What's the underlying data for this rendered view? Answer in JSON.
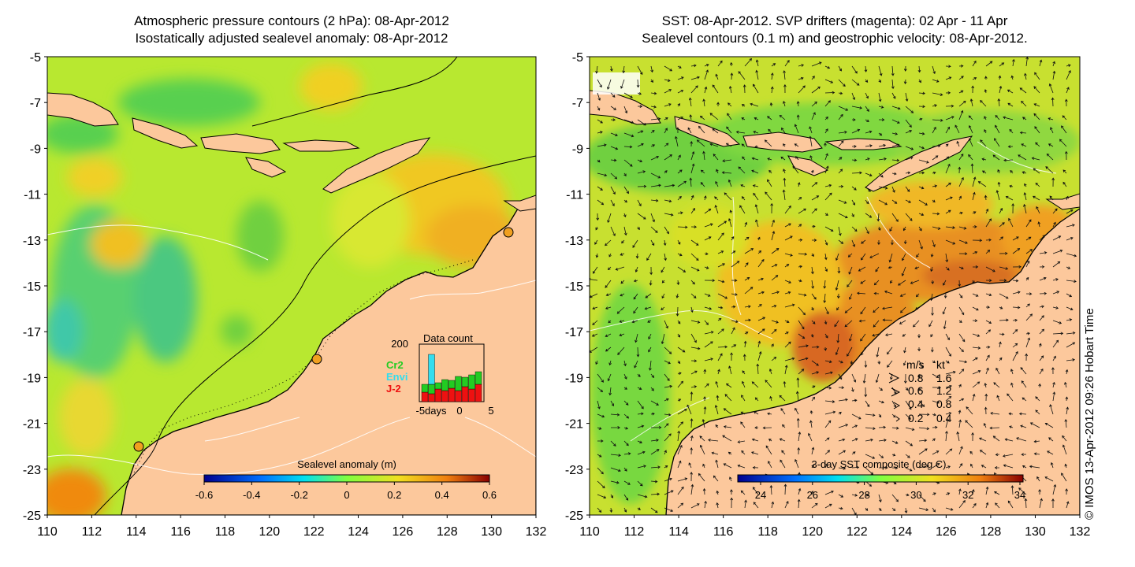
{
  "left_panel": {
    "title_line1": "Atmospheric pressure contours (2 hPa): 08-Apr-2012",
    "title_line2": "Isostatically adjusted sealevel anomaly: 08-Apr-2012",
    "y_ticks": [
      "-5",
      "-7",
      "-9",
      "-11",
      "-13",
      "-15",
      "-17",
      "-19",
      "-21",
      "-23",
      "-25"
    ],
    "x_ticks": [
      "110",
      "112",
      "114",
      "116",
      "118",
      "120",
      "122",
      "124",
      "126",
      "128",
      "130",
      "132"
    ],
    "colorbar": {
      "title": "Sealevel anomaly (m)",
      "ticks": [
        "-0.6",
        "-0.4",
        "-0.2",
        "0",
        "0.2",
        "0.4",
        "0.6"
      ]
    },
    "data_count": {
      "title": "Data count",
      "ymax": "200",
      "x_ticks": [
        "-5days",
        "0",
        "5"
      ],
      "legend": [
        {
          "name": "Cr2",
          "color": "#22cc22"
        },
        {
          "name": "Envi",
          "color": "#33ddee"
        },
        {
          "name": "J-2",
          "color": "#ee1111"
        }
      ]
    }
  },
  "right_panel": {
    "title_line1": "SST: 08-Apr-2012. SVP drifters (magenta): 02 Apr - 11 Apr",
    "title_line2": "Sealevel contours (0.1 m) and geostrophic velocity: 08-Apr-2012.",
    "y_ticks": [
      "-5",
      "-7",
      "-9",
      "-11",
      "-13",
      "-15",
      "-17",
      "-19",
      "-21",
      "-23",
      "-25"
    ],
    "x_ticks": [
      "110",
      "112",
      "114",
      "116",
      "118",
      "120",
      "122",
      "124",
      "126",
      "128",
      "130",
      "132"
    ],
    "colorbar": {
      "title": "3-day SST composite (deg C)",
      "ticks": [
        "24",
        "26",
        "28",
        "30",
        "32",
        "34"
      ]
    },
    "velocity_legend": {
      "header_ms": "m/s",
      "header_kt": "kt",
      "rows": [
        {
          "ms": "0.8",
          "kt": "1.6"
        },
        {
          "ms": "0.6",
          "kt": "1.2"
        },
        {
          "ms": "0.4",
          "kt": "0.8"
        },
        {
          "ms": "0.2",
          "kt": "0.4"
        }
      ]
    }
  },
  "credit": "© IMOS 13-Apr-2012 09:26 Hobart Time",
  "colors": {
    "land": "#fcc89c",
    "ocean_green": "#a8e22a",
    "sst_orange": "#f0a830"
  }
}
